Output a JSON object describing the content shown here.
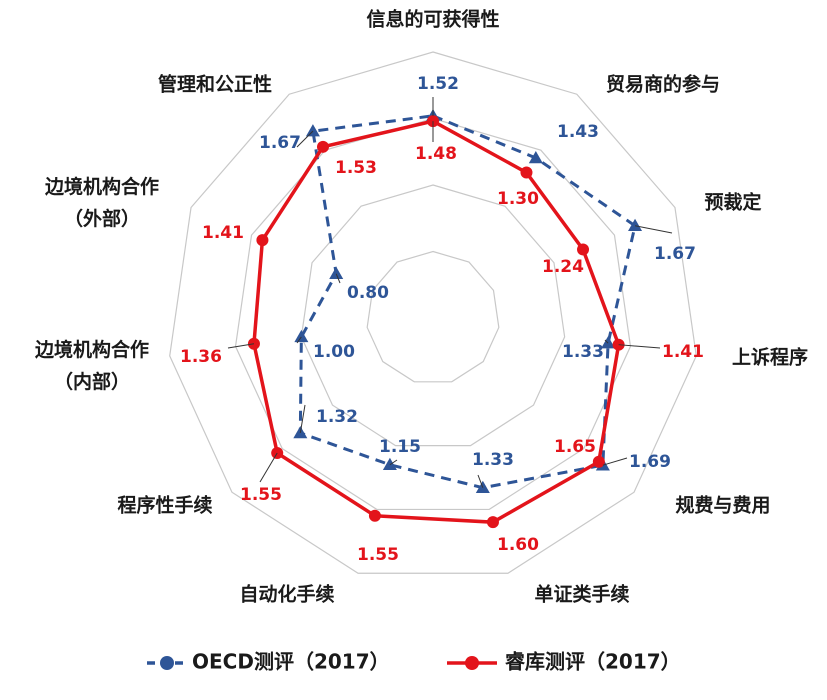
{
  "chart_data": {
    "type": "radar",
    "axes": [
      "信息的可获得性",
      "贸易商的参与",
      "预裁定",
      "上诉程序",
      "规费与费用",
      "单证类手续",
      "自动化手续",
      "程序性手续",
      "边境机构合作（内部）",
      "边境机构合作（外部）",
      "管理和公正性"
    ],
    "rlim": [
      0,
      2
    ],
    "grid": true,
    "series": [
      {
        "name": "OECD测评（2017）",
        "color": "#2e5597",
        "style": "dashed",
        "marker": "triangle",
        "values": [
          1.52,
          1.43,
          1.67,
          1.33,
          1.69,
          1.33,
          1.15,
          1.32,
          1.0,
          0.8,
          1.67
        ]
      },
      {
        "name": "睿库测评（2017）",
        "color": "#e3141b",
        "style": "solid",
        "marker": "circle",
        "values": [
          1.48,
          1.3,
          1.24,
          1.41,
          1.65,
          1.6,
          1.55,
          1.55,
          1.36,
          1.41,
          1.53
        ]
      }
    ],
    "legend": {
      "position": "bottom",
      "items": [
        "OECD测评（2017）",
        "睿库测评（2017）"
      ]
    }
  }
}
